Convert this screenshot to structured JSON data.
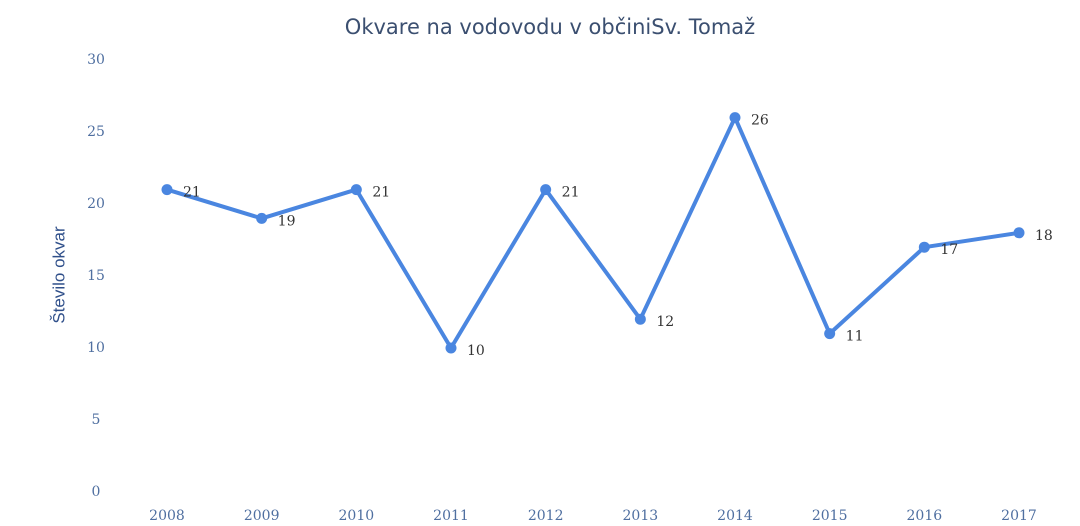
{
  "chart_data": {
    "type": "line",
    "title": "Okvare na vodovodu v občiniSv. Tomaž",
    "y_label": "Število okvar",
    "categories": [
      "2008",
      "2009",
      "2010",
      "2011",
      "2012",
      "2013",
      "2014",
      "2015",
      "2016",
      "2017"
    ],
    "values": [
      21,
      19,
      21,
      10,
      21,
      12,
      26,
      11,
      17,
      18
    ],
    "color": "#4a86e0",
    "ylim": [
      0,
      30
    ],
    "yticks": [
      0,
      5,
      10,
      15,
      20,
      25,
      30
    ],
    "grid": false
  }
}
